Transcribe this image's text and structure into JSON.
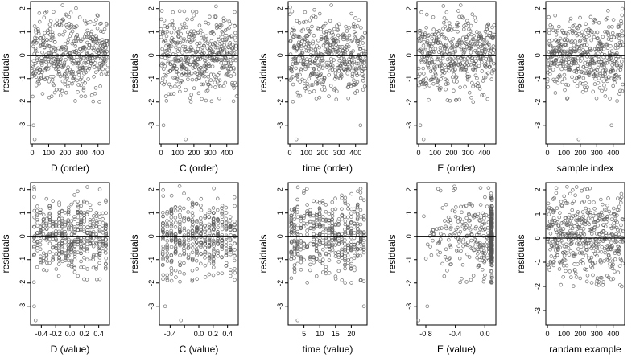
{
  "style": {
    "point_color": "#555555",
    "axis_color": "#000000"
  },
  "chart_data": [
    {
      "type": "scatter",
      "title": "",
      "xlabel": "D (order)",
      "ylabel": "residuals",
      "xlim": [
        -10,
        470
      ],
      "ylim": [
        -3.8,
        2.3
      ],
      "xticks": [
        0,
        100,
        200,
        300,
        400
      ],
      "xtick_labels": [
        "0",
        "100",
        "200",
        "300",
        "400"
      ],
      "yticks": [
        -3,
        -2,
        -1,
        0,
        1,
        2
      ],
      "ytick_labels": [
        "-3",
        "-2",
        "-1",
        "0",
        "1",
        "2"
      ],
      "ref_line": 0,
      "gen": {
        "kind": "index",
        "min": 0,
        "max": 460,
        "n": 460,
        "seed": 11
      },
      "outliers": [
        [
          8,
          -3.0
        ],
        [
          15,
          -3.6
        ]
      ],
      "points": []
    },
    {
      "type": "scatter",
      "title": "",
      "xlabel": "C (order)",
      "ylabel": "residuals",
      "xlim": [
        -10,
        470
      ],
      "ylim": [
        -3.8,
        2.3
      ],
      "xticks": [
        0,
        100,
        200,
        300,
        400
      ],
      "xtick_labels": [
        "0",
        "100",
        "200",
        "300",
        "400"
      ],
      "yticks": [
        -3,
        -2,
        -1,
        0,
        1,
        2
      ],
      "ytick_labels": [
        "-3",
        "-2",
        "-1",
        "0",
        "1",
        "2"
      ],
      "ref_line": 0,
      "gen": {
        "kind": "index",
        "min": 0,
        "max": 460,
        "n": 460,
        "seed": 12
      },
      "outliers": [
        [
          15,
          -3.0
        ],
        [
          150,
          -3.6
        ]
      ],
      "points": []
    },
    {
      "type": "scatter",
      "title": "",
      "xlabel": "time (order)",
      "ylabel": "residuals",
      "xlim": [
        -10,
        470
      ],
      "ylim": [
        -3.8,
        2.3
      ],
      "xticks": [
        0,
        100,
        200,
        300,
        400
      ],
      "xtick_labels": [
        "0",
        "100",
        "200",
        "300",
        "400"
      ],
      "yticks": [
        -3,
        -2,
        -1,
        0,
        1,
        2
      ],
      "ytick_labels": [
        "-3",
        "-2",
        "-1",
        "0",
        "1",
        "2"
      ],
      "ref_line": 0,
      "gen": {
        "kind": "index",
        "min": 0,
        "max": 460,
        "n": 460,
        "seed": 13
      },
      "outliers": [
        [
          40,
          -3.6
        ],
        [
          430,
          -3.0
        ]
      ],
      "points": []
    },
    {
      "type": "scatter",
      "title": "",
      "xlabel": "E (order)",
      "ylabel": "residuals",
      "xlim": [
        -10,
        470
      ],
      "ylim": [
        -3.8,
        2.3
      ],
      "xticks": [
        0,
        100,
        200,
        300,
        400
      ],
      "xtick_labels": [
        "0",
        "100",
        "200",
        "300",
        "400"
      ],
      "yticks": [
        -3,
        -2,
        -1,
        0,
        1,
        2
      ],
      "ytick_labels": [
        "-3",
        "-2",
        "-1",
        "0",
        "1",
        "2"
      ],
      "ref_line": 0,
      "gen": {
        "kind": "index",
        "min": 0,
        "max": 460,
        "n": 460,
        "seed": 14
      },
      "outliers": [
        [
          10,
          -3.0
        ],
        [
          30,
          -3.6
        ]
      ],
      "points": []
    },
    {
      "type": "scatter",
      "title": "",
      "xlabel": "sample index",
      "ylabel": "residuals",
      "xlim": [
        -10,
        470
      ],
      "ylim": [
        -3.8,
        2.3
      ],
      "xticks": [
        0,
        100,
        200,
        300,
        400
      ],
      "xtick_labels": [
        "0",
        "100",
        "200",
        "300",
        "400"
      ],
      "yticks": [
        -3,
        -2,
        -1,
        0,
        1,
        2
      ],
      "ytick_labels": [
        "-3",
        "-2",
        "-1",
        "0",
        "1",
        "2"
      ],
      "ref_line": 0,
      "gen": {
        "kind": "index",
        "min": 0,
        "max": 460,
        "n": 460,
        "seed": 15
      },
      "outliers": [
        [
          190,
          -3.6
        ],
        [
          390,
          -3.0
        ]
      ],
      "points": []
    },
    {
      "type": "scatter",
      "title": "",
      "xlabel": "D (value)",
      "ylabel": "residuals",
      "xlim": [
        -0.55,
        0.55
      ],
      "ylim": [
        -3.8,
        2.3
      ],
      "xticks": [
        -0.4,
        -0.2,
        0.0,
        0.2,
        0.4
      ],
      "xtick_labels": [
        "-0.4",
        "-0.2",
        "0.0",
        "0.2",
        "0.4"
      ],
      "yticks": [
        -3,
        -2,
        -1,
        0,
        1,
        2
      ],
      "ytick_labels": [
        "-3",
        "-2",
        "-1",
        "0",
        "1",
        "2"
      ],
      "ref_line": 0,
      "gen": {
        "kind": "columns",
        "min": -0.5,
        "max": 0.5,
        "ncols": 24,
        "n": 460,
        "seed": 21,
        "jitter": 0.004
      },
      "outliers": [
        [
          -0.5,
          -3.0
        ],
        [
          -0.48,
          -3.6
        ]
      ],
      "points": []
    },
    {
      "type": "scatter",
      "title": "",
      "xlabel": "C (value)",
      "ylabel": "residuals",
      "xlim": [
        -0.55,
        0.55
      ],
      "ylim": [
        -3.8,
        2.3
      ],
      "xticks": [
        -0.4,
        -0.2,
        0.0,
        0.2,
        0.4
      ],
      "xtick_labels": [
        "-0.4",
        "",
        "0.0",
        "0.2",
        "0.4"
      ],
      "yticks": [
        -3,
        -2,
        -1,
        0,
        1,
        2
      ],
      "ytick_labels": [
        "-3",
        "-2",
        "-1",
        "0",
        "1",
        "2"
      ],
      "ref_line": 0,
      "gen": {
        "kind": "columns",
        "min": -0.5,
        "max": 0.5,
        "ncols": 18,
        "n": 460,
        "seed": 22,
        "jitter": 0.004
      },
      "outliers": [
        [
          -0.47,
          -3.0
        ],
        [
          -0.25,
          -3.6
        ]
      ],
      "points": []
    },
    {
      "type": "scatter",
      "title": "",
      "xlabel": "time (value)",
      "ylabel": "residuals",
      "xlim": [
        0,
        25
      ],
      "ylim": [
        -3.8,
        2.3
      ],
      "xticks": [
        5,
        10,
        15,
        20
      ],
      "xtick_labels": [
        "5",
        "10",
        "15",
        "20"
      ],
      "yticks": [
        -3,
        -2,
        -1,
        0,
        1,
        2
      ],
      "ytick_labels": [
        "-3",
        "-2",
        "-1",
        "0",
        "1",
        "2"
      ],
      "ref_line": 0,
      "gen": {
        "kind": "columns",
        "min": 1,
        "max": 24,
        "ncols": 24,
        "n": 460,
        "seed": 23,
        "jitter": 0.08
      },
      "outliers": [
        [
          3,
          -3.6
        ],
        [
          24,
          -3.0
        ]
      ],
      "points": []
    },
    {
      "type": "scatter",
      "title": "",
      "xlabel": "E (value)",
      "ylabel": "residuals",
      "xlim": [
        -0.92,
        0.15
      ],
      "ylim": [
        -3.8,
        2.3
      ],
      "xticks": [
        -0.8,
        -0.4,
        0.0
      ],
      "xtick_labels": [
        "-0.8",
        "-0.4",
        "0.0"
      ],
      "yticks": [
        -3,
        -2,
        -1,
        0,
        1,
        2
      ],
      "ytick_labels": [
        "-3",
        "-2",
        "-1",
        "0",
        "1",
        "2"
      ],
      "ref_line": 0,
      "gen": {
        "kind": "skew",
        "min": -0.85,
        "max": 0.1,
        "n": 460,
        "seed": 24
      },
      "outliers": [
        [
          -0.78,
          -3.0
        ],
        [
          -0.9,
          -3.6
        ]
      ],
      "points": []
    },
    {
      "type": "scatter",
      "title": "",
      "xlabel": "randam example",
      "ylabel": "residuals",
      "xlim": [
        -10,
        470
      ],
      "ylim": [
        -3.6,
        2.3
      ],
      "xticks": [
        0,
        100,
        200,
        300,
        400
      ],
      "xtick_labels": [
        "0",
        "100",
        "200",
        "300",
        "400"
      ],
      "yticks": [
        -3,
        -2,
        -1,
        0,
        1,
        2
      ],
      "ytick_labels": [
        "-3",
        "-2",
        "-1",
        "0",
        "1",
        "2"
      ],
      "ref_line": 0,
      "gen": {
        "kind": "index",
        "min": 0,
        "max": 460,
        "n": 460,
        "seed": 25,
        "sd": 0.9
      },
      "outliers": [],
      "points": []
    }
  ]
}
